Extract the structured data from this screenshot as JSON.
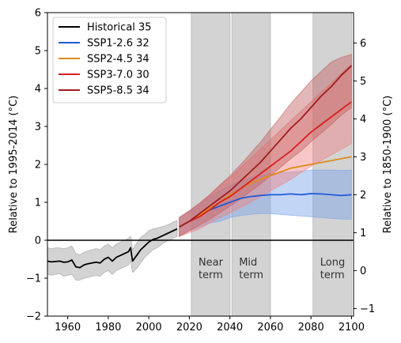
{
  "chart_data": {
    "type": "line",
    "xlim": [
      1950,
      2101
    ],
    "ylim": [
      -2,
      6
    ],
    "y2lim": [
      -1.2,
      6.8
    ],
    "xticks": [
      1960,
      1980,
      2000,
      2020,
      2040,
      2060,
      2080,
      2100
    ],
    "yticks": [
      -2,
      -1,
      0,
      1,
      2,
      3,
      4,
      5,
      6
    ],
    "ytick_labels": [
      "−2",
      "−1",
      "0",
      "1",
      "2",
      "3",
      "4",
      "5",
      "6"
    ],
    "y2ticks": [
      -1,
      0,
      1,
      2,
      3,
      4,
      5,
      6
    ],
    "y2tick_labels": [
      "−1",
      "0",
      "1",
      "2",
      "3",
      "4",
      "5",
      "6"
    ],
    "ylabel": "Relative to 1995-2014 (°C)",
    "y2label": "Relative to 1850-1900 (°C)",
    "legend_position": "top-left",
    "zero_line": 0,
    "periods": [
      {
        "start": 2021,
        "end": 2040,
        "label_lines": [
          "Near",
          "term"
        ]
      },
      {
        "start": 2041,
        "end": 2060,
        "label_lines": [
          "Mid",
          "term"
        ]
      },
      {
        "start": 2081,
        "end": 2100,
        "label_lines": [
          "Long",
          "term"
        ]
      }
    ],
    "series": [
      {
        "name": "Historical 35",
        "legend_label": "Historical  35",
        "color": "#000000",
        "band_color": "#9e9e9e",
        "x": [
          1950,
          1952,
          1954,
          1956,
          1958,
          1960,
          1962,
          1964,
          1966,
          1968,
          1970,
          1972,
          1974,
          1976,
          1978,
          1980,
          1982,
          1984,
          1986,
          1988,
          1990,
          1991,
          1992,
          1994,
          1996,
          1998,
          2000,
          2002,
          2004,
          2006,
          2008,
          2010,
          2012,
          2014
        ],
        "y": [
          -0.55,
          -0.57,
          -0.56,
          -0.55,
          -0.58,
          -0.57,
          -0.52,
          -0.7,
          -0.72,
          -0.65,
          -0.62,
          -0.6,
          -0.58,
          -0.6,
          -0.5,
          -0.45,
          -0.55,
          -0.45,
          -0.4,
          -0.35,
          -0.3,
          -0.2,
          -0.55,
          -0.4,
          -0.25,
          -0.15,
          -0.05,
          0.02,
          0.05,
          0.1,
          0.15,
          0.2,
          0.25,
          0.3
        ],
        "lower": [
          -0.9,
          -0.92,
          -0.9,
          -0.88,
          -0.95,
          -0.92,
          -0.9,
          -1.05,
          -1.05,
          -1.0,
          -0.98,
          -0.95,
          -0.93,
          -0.95,
          -0.85,
          -0.8,
          -0.9,
          -0.8,
          -0.75,
          -0.7,
          -0.65,
          -0.55,
          -0.85,
          -0.75,
          -0.6,
          -0.45,
          -0.35,
          -0.25,
          -0.2,
          -0.12,
          -0.05,
          0.0,
          0.05,
          0.1
        ],
        "upper": [
          -0.2,
          -0.22,
          -0.2,
          -0.2,
          -0.22,
          -0.2,
          -0.15,
          -0.35,
          -0.38,
          -0.32,
          -0.28,
          -0.25,
          -0.22,
          -0.25,
          -0.15,
          -0.1,
          -0.2,
          -0.1,
          -0.05,
          0.0,
          0.05,
          0.1,
          -0.25,
          -0.08,
          0.08,
          0.15,
          0.25,
          0.3,
          0.32,
          0.35,
          0.38,
          0.42,
          0.48,
          0.52
        ]
      },
      {
        "name": "SSP1-2.6 32",
        "legend_label": "SSP1-2.6  32",
        "color": "#1f5bd6",
        "band_color": "#7aa2e8",
        "x": [
          2015,
          2020,
          2025,
          2030,
          2035,
          2040,
          2045,
          2050,
          2055,
          2060,
          2065,
          2070,
          2075,
          2080,
          2085,
          2090,
          2095,
          2100
        ],
        "y": [
          0.35,
          0.5,
          0.65,
          0.8,
          0.9,
          1.0,
          1.1,
          1.15,
          1.18,
          1.2,
          1.2,
          1.22,
          1.2,
          1.23,
          1.22,
          1.2,
          1.18,
          1.2
        ],
        "lower": [
          0.1,
          0.25,
          0.35,
          0.45,
          0.5,
          0.6,
          0.65,
          0.68,
          0.7,
          0.7,
          0.68,
          0.66,
          0.64,
          0.62,
          0.6,
          0.58,
          0.56,
          0.55
        ],
        "upper": [
          0.6,
          0.75,
          0.95,
          1.15,
          1.3,
          1.45,
          1.55,
          1.65,
          1.7,
          1.75,
          1.78,
          1.8,
          1.82,
          1.85,
          1.85,
          1.85,
          1.84,
          1.85
        ]
      },
      {
        "name": "SSP2-4.5 34",
        "legend_label": "SSP2-4.5  34",
        "color": "#e08a1e",
        "band_color": "#f2b070",
        "x": [
          2015,
          2020,
          2025,
          2030,
          2035,
          2040,
          2045,
          2050,
          2055,
          2060,
          2065,
          2070,
          2075,
          2080,
          2085,
          2090,
          2095,
          2100
        ],
        "y": [
          0.35,
          0.5,
          0.65,
          0.85,
          1.0,
          1.2,
          1.35,
          1.5,
          1.6,
          1.7,
          1.8,
          1.9,
          1.95,
          2.0,
          2.05,
          2.1,
          2.15,
          2.2
        ]
      },
      {
        "name": "SSP3-7.0 30",
        "legend_label": "SSP3-7.0  30",
        "color": "#d62020",
        "band_color": "#f08080",
        "x": [
          2015,
          2020,
          2025,
          2030,
          2035,
          2040,
          2045,
          2050,
          2055,
          2060,
          2065,
          2070,
          2075,
          2080,
          2085,
          2090,
          2095,
          2100
        ],
        "y": [
          0.35,
          0.5,
          0.62,
          0.8,
          1.0,
          1.15,
          1.35,
          1.55,
          1.75,
          1.95,
          2.15,
          2.35,
          2.6,
          2.85,
          3.05,
          3.25,
          3.45,
          3.65
        ],
        "lower": [
          0.1,
          0.2,
          0.3,
          0.45,
          0.6,
          0.72,
          0.85,
          1.0,
          1.15,
          1.3,
          1.45,
          1.6,
          1.78,
          1.95,
          2.1,
          2.25,
          2.4,
          2.55
        ],
        "upper": [
          0.6,
          0.78,
          0.95,
          1.2,
          1.45,
          1.65,
          1.9,
          2.15,
          2.4,
          2.65,
          2.9,
          3.15,
          3.4,
          3.65,
          3.9,
          4.15,
          4.4,
          4.65
        ]
      },
      {
        "name": "SSP5-8.5 34",
        "legend_label": "SSP5-8.5  34",
        "color": "#9e1c1c",
        "band_color": "#c06060",
        "x": [
          2015,
          2020,
          2025,
          2030,
          2035,
          2040,
          2045,
          2050,
          2055,
          2060,
          2065,
          2070,
          2075,
          2080,
          2085,
          2090,
          2095,
          2100
        ],
        "y": [
          0.35,
          0.5,
          0.7,
          0.9,
          1.1,
          1.3,
          1.55,
          1.8,
          2.05,
          2.35,
          2.65,
          2.95,
          3.2,
          3.5,
          3.8,
          4.05,
          4.35,
          4.6
        ],
        "lower": [
          0.1,
          0.25,
          0.4,
          0.55,
          0.72,
          0.9,
          1.08,
          1.28,
          1.48,
          1.7,
          1.92,
          2.15,
          2.35,
          2.6,
          2.82,
          3.05,
          3.3,
          3.5
        ],
        "upper": [
          0.6,
          0.78,
          0.98,
          1.2,
          1.45,
          1.7,
          1.98,
          2.28,
          2.58,
          2.92,
          3.25,
          3.6,
          3.9,
          4.2,
          4.45,
          4.7,
          4.82,
          4.9
        ]
      }
    ]
  }
}
